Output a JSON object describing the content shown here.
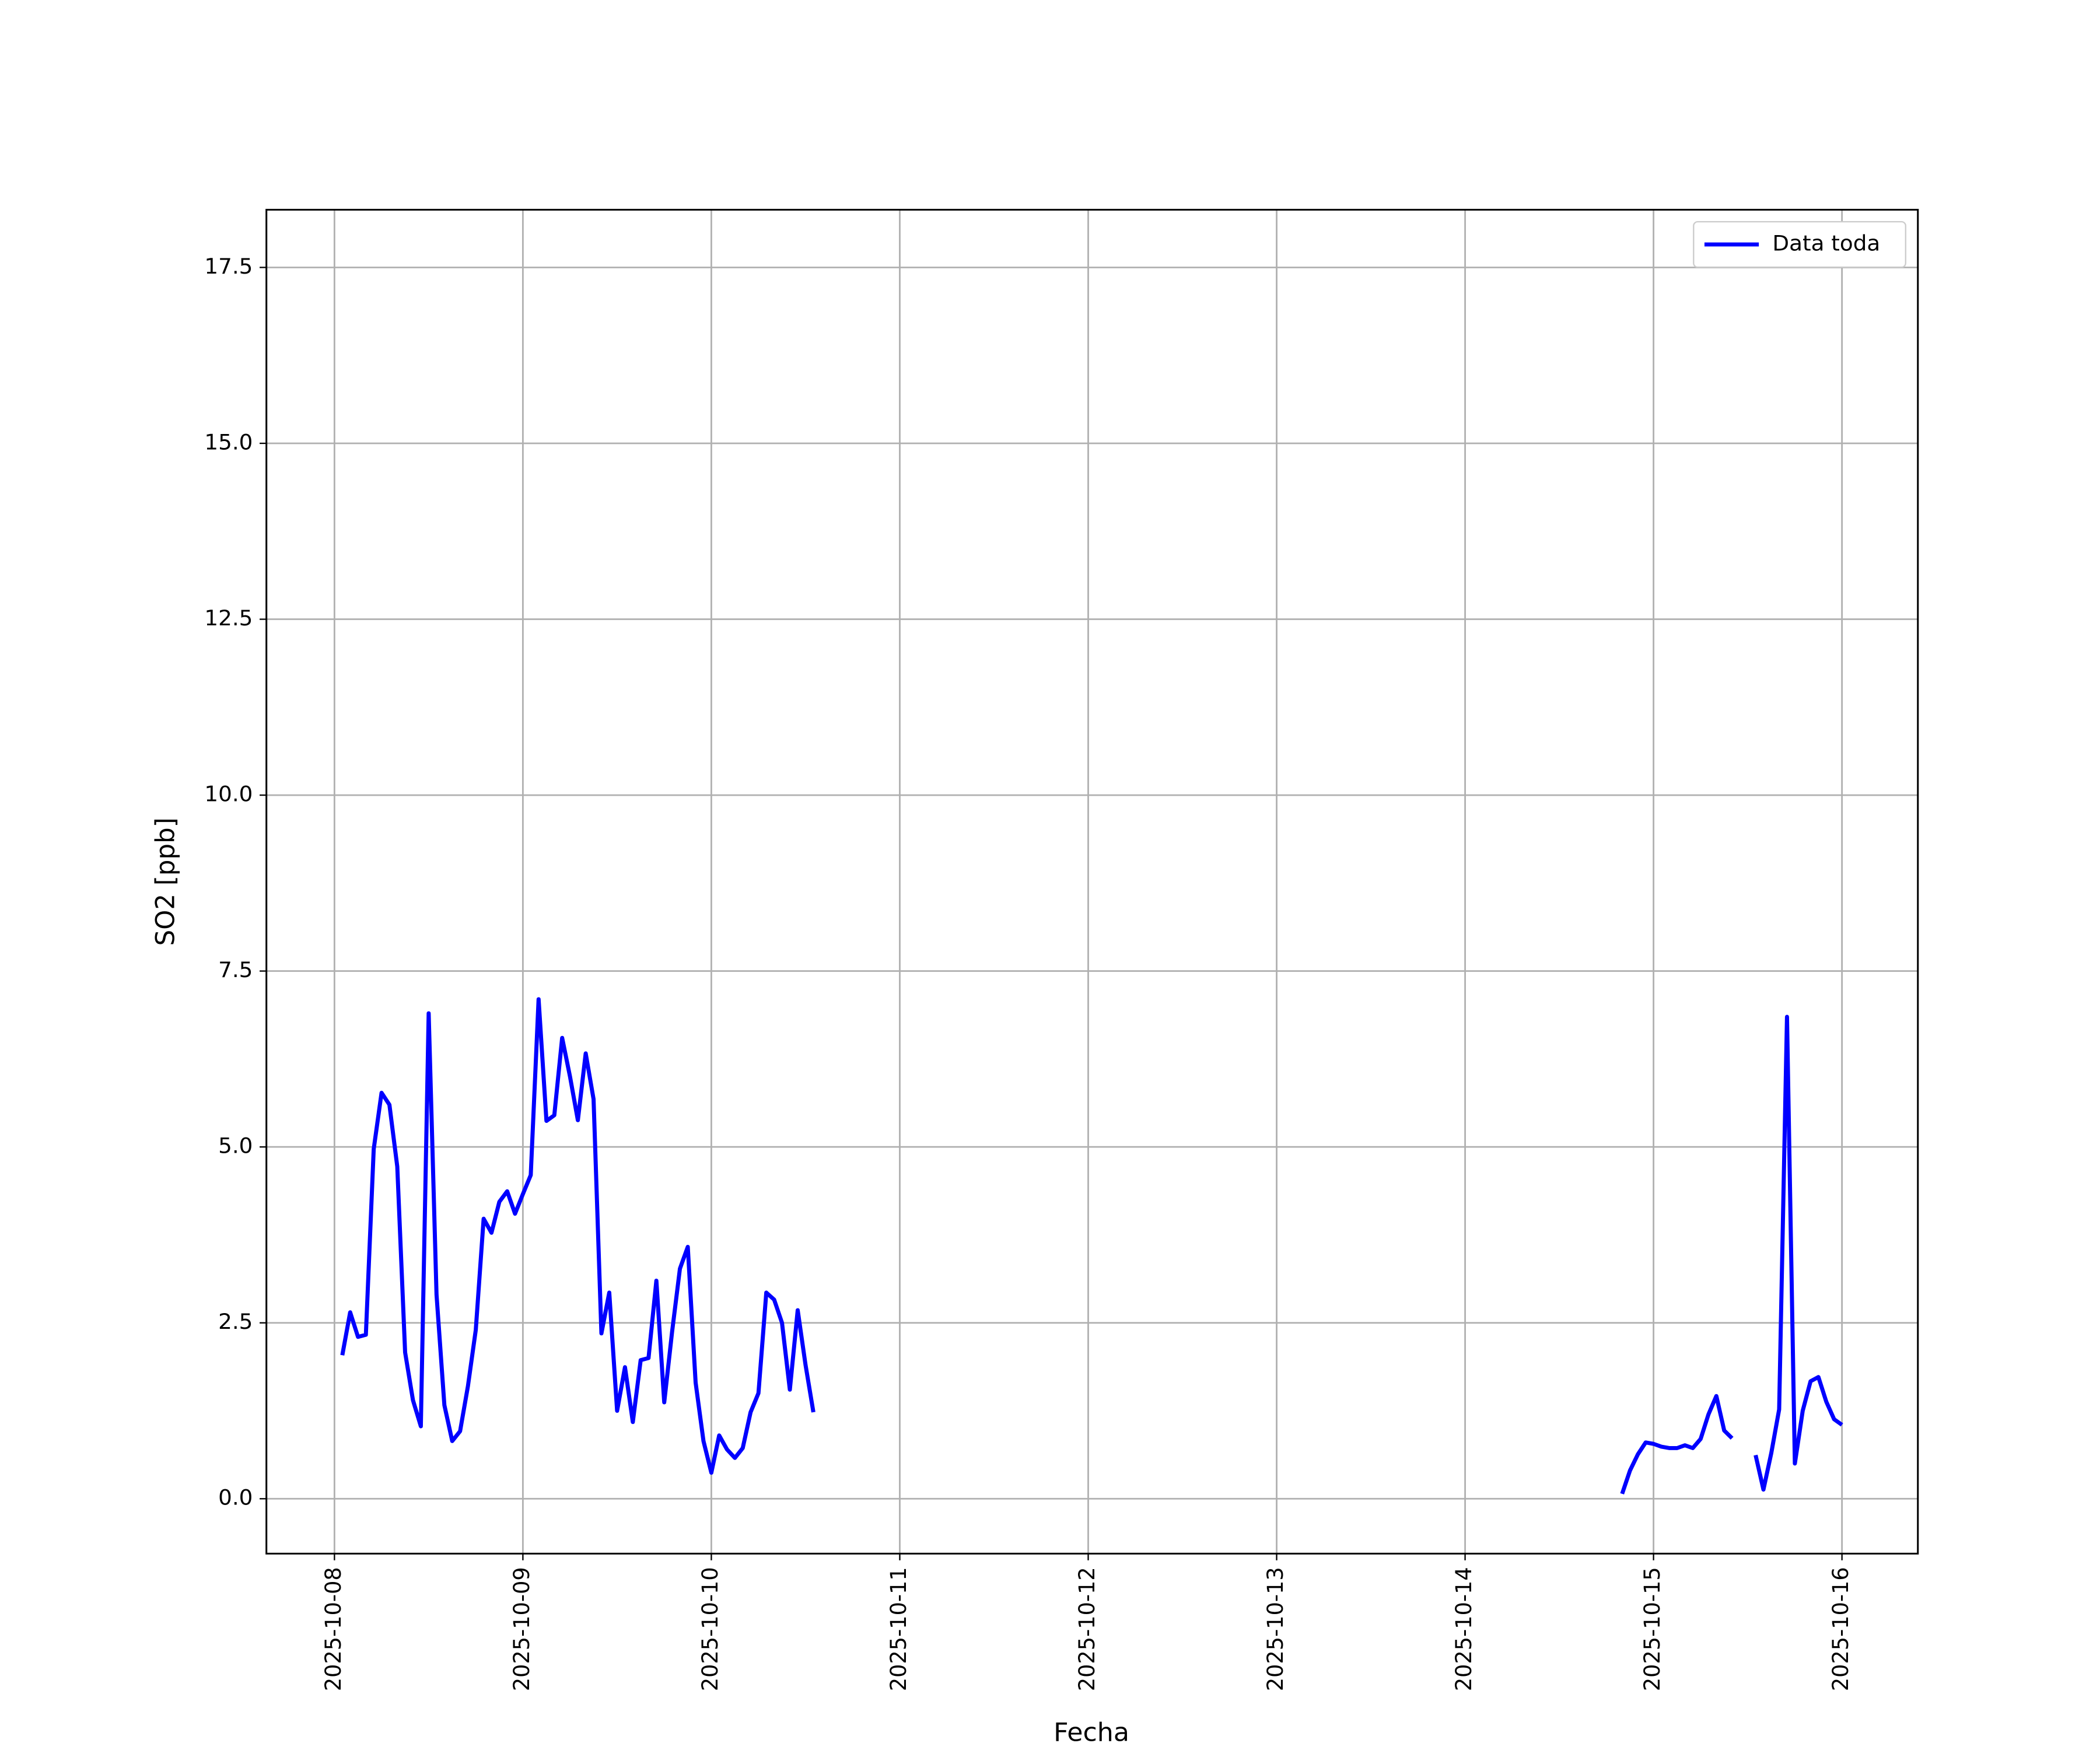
{
  "chart_data": {
    "type": "line",
    "xlabel": "Fecha",
    "ylabel": "SO2 [ppb]",
    "x": [
      "2025-10-08 01:00",
      "2025-10-08 02:00",
      "2025-10-08 03:00",
      "2025-10-08 04:00",
      "2025-10-08 05:00",
      "2025-10-08 06:00",
      "2025-10-08 07:00",
      "2025-10-08 08:00",
      "2025-10-08 09:00",
      "2025-10-08 10:00",
      "2025-10-08 11:00",
      "2025-10-08 12:00",
      "2025-10-08 13:00",
      "2025-10-08 14:00",
      "2025-10-08 15:00",
      "2025-10-08 16:00",
      "2025-10-08 17:00",
      "2025-10-08 18:00",
      "2025-10-08 19:00",
      "2025-10-08 20:00",
      "2025-10-08 21:00",
      "2025-10-08 22:00",
      "2025-10-08 23:00",
      "2025-10-09 00:00",
      "2025-10-09 01:00",
      "2025-10-09 02:00",
      "2025-10-09 03:00",
      "2025-10-09 04:00",
      "2025-10-09 05:00",
      "2025-10-09 06:00",
      "2025-10-09 07:00",
      "2025-10-09 08:00",
      "2025-10-09 09:00",
      "2025-10-09 10:00",
      "2025-10-09 11:00",
      "2025-10-09 12:00",
      "2025-10-09 13:00",
      "2025-10-09 14:00",
      "2025-10-09 15:00",
      "2025-10-09 16:00",
      "2025-10-09 17:00",
      "2025-10-09 18:00",
      "2025-10-09 19:00",
      "2025-10-09 20:00",
      "2025-10-09 21:00",
      "2025-10-09 22:00",
      "2025-10-09 23:00",
      "2025-10-10 00:00",
      "2025-10-10 01:00",
      "2025-10-10 02:00",
      "2025-10-10 03:00",
      "2025-10-10 04:00",
      "2025-10-10 05:00",
      "2025-10-10 06:00",
      "2025-10-10 07:00",
      "2025-10-10 08:00",
      "2025-10-10 09:00",
      "2025-10-10 10:00",
      "2025-10-10 11:00",
      "2025-10-10 12:00",
      "2025-10-10 13:00",
      "2025-10-10 14:00",
      "2025-10-14 20:00",
      "2025-10-14 21:00",
      "2025-10-14 22:00",
      "2025-10-14 23:00",
      "2025-10-15 00:00",
      "2025-10-15 01:00",
      "2025-10-15 02:00",
      "2025-10-15 03:00",
      "2025-10-15 04:00",
      "2025-10-15 05:00",
      "2025-10-15 06:00",
      "2025-10-15 07:00",
      "2025-10-15 08:00",
      "2025-10-15 09:00",
      "2025-10-15 10:00",
      "2025-10-15 11:00",
      "2025-10-15 13:00",
      "2025-10-15 14:00",
      "2025-10-15 15:00",
      "2025-10-15 16:00",
      "2025-10-15 17:00",
      "2025-10-15 18:00",
      "2025-10-15 19:00",
      "2025-10-15 20:00",
      "2025-10-15 21:00",
      "2025-10-15 22:00",
      "2025-10-15 23:00",
      "2025-10-16 00:00"
    ],
    "series": [
      {
        "name": "Data toda",
        "color": "#0000ff",
        "values": [
          2.04,
          2.65,
          2.3,
          2.33,
          4.97,
          5.77,
          5.6,
          4.72,
          2.08,
          1.4,
          1.03,
          6.9,
          2.9,
          1.33,
          0.82,
          0.96,
          1.6,
          2.4,
          3.98,
          3.78,
          4.22,
          4.37,
          4.05,
          4.33,
          4.6,
          7.1,
          5.37,
          5.45,
          6.55,
          6.0,
          5.38,
          6.33,
          5.68,
          2.35,
          2.93,
          1.25,
          1.87,
          1.09,
          1.97,
          2.0,
          3.1,
          1.37,
          2.37,
          3.27,
          3.58,
          1.65,
          0.82,
          0.37,
          0.9,
          0.7,
          0.58,
          0.72,
          1.23,
          1.5,
          2.93,
          2.83,
          2.5,
          1.55,
          2.68,
          1.9,
          1.23,
          null,
          0.07,
          0.4,
          0.63,
          0.8,
          0.78,
          0.74,
          0.72,
          0.72,
          0.76,
          0.72,
          0.85,
          1.2,
          1.46,
          0.97,
          0.86,
          null,
          0.62,
          0.13,
          0.65,
          1.27,
          6.85,
          0.5,
          1.25,
          1.67,
          1.73,
          1.38,
          1.13,
          1.05
        ]
      }
    ],
    "xlim": [
      "2025-10-07 15:20",
      "2025-10-16 09:40"
    ],
    "xticks": [
      "2025-10-08",
      "2025-10-09",
      "2025-10-10",
      "2025-10-11",
      "2025-10-12",
      "2025-10-13",
      "2025-10-14",
      "2025-10-15",
      "2025-10-16"
    ],
    "ylim": [
      -0.78,
      18.32
    ],
    "yticks": [
      {
        "value": 0,
        "label": "0.0"
      },
      2.5,
      {
        "value": 5,
        "label": "5.0"
      },
      7.5,
      {
        "value": 10,
        "label": "10.0"
      },
      12.5,
      {
        "value": 15,
        "label": "15.0"
      },
      17.5
    ],
    "grid": true,
    "legend": "upper right"
  }
}
